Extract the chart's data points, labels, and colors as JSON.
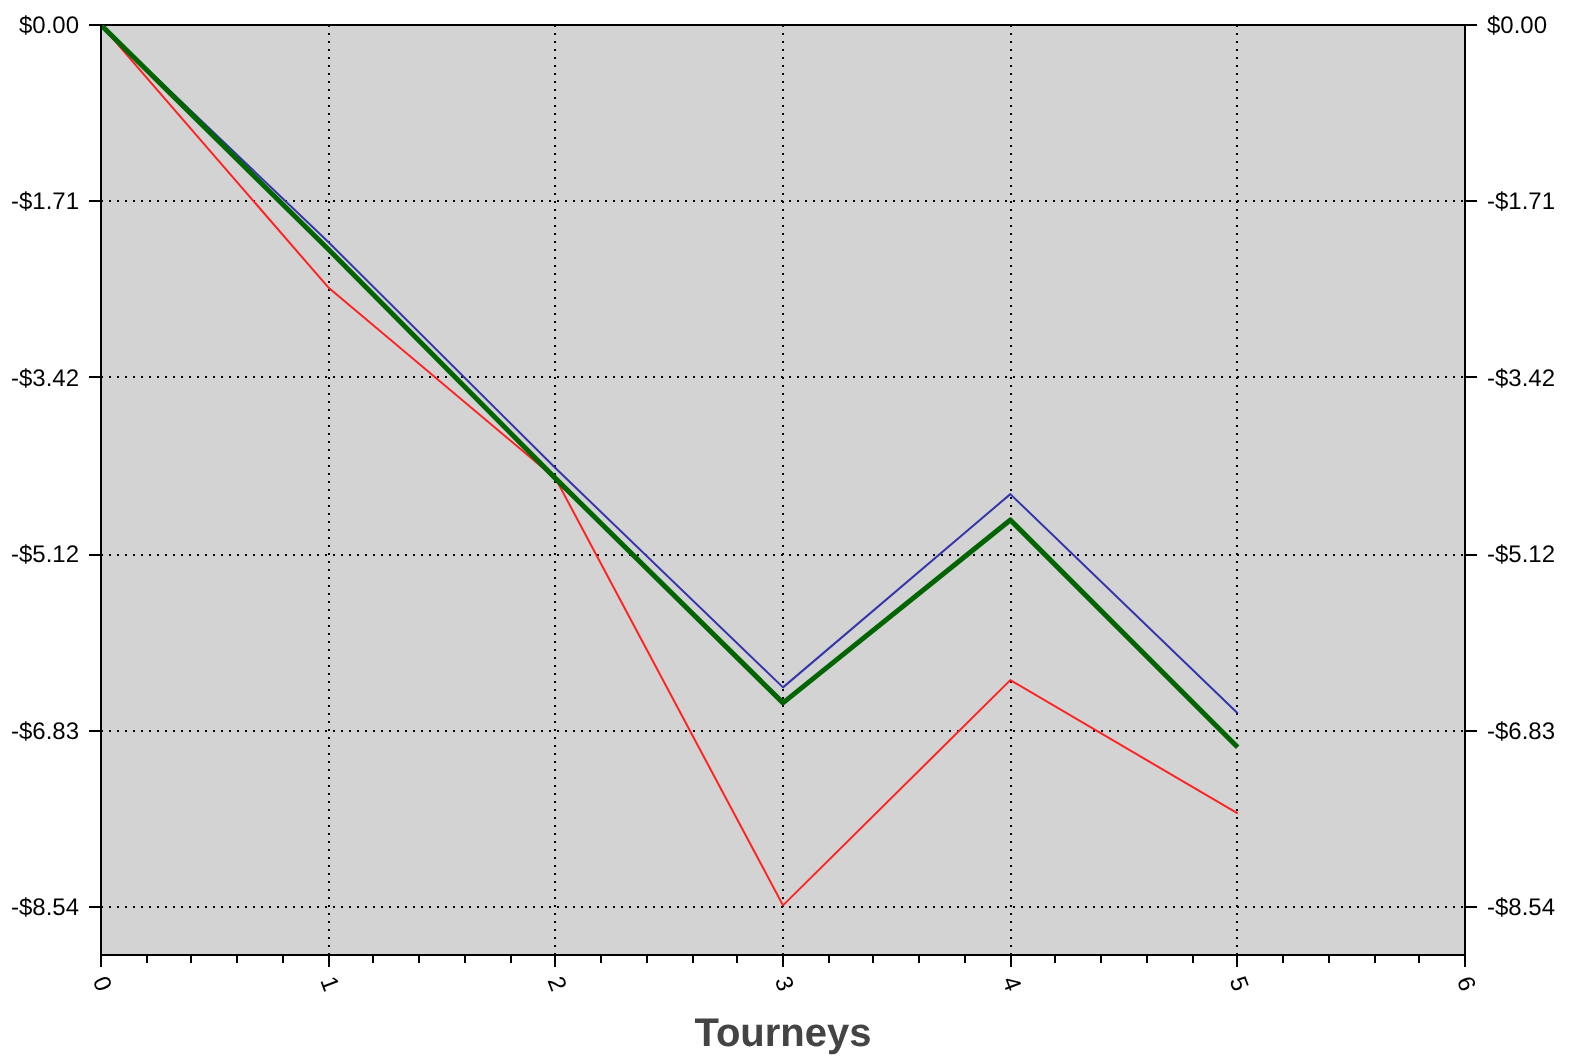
{
  "chart_data": {
    "type": "line",
    "xlabel": "Tourneys",
    "x": [
      0,
      1,
      2,
      3,
      4,
      5
    ],
    "series": [
      {
        "color": "#3333aa",
        "values": [
          0,
          -2.1,
          -4.29,
          -6.41,
          -4.54,
          -6.66
        ]
      },
      {
        "color": "#ff2020",
        "values": [
          0,
          -2.54,
          -4.39,
          -8.52,
          -6.34,
          -7.63
        ]
      },
      {
        "color": "#006400",
        "values": [
          0,
          -2.17,
          -4.39,
          -6.56,
          -4.79,
          -6.99
        ]
      }
    ],
    "xlim": [
      0,
      6
    ],
    "xticks": [
      0,
      1,
      2,
      3,
      4,
      5,
      6
    ],
    "ylim": [
      -9.0,
      0
    ],
    "yticks": [
      {
        "value": 0,
        "label": "$0.00"
      },
      {
        "value": -1.708,
        "label": "-$1.71"
      },
      {
        "value": -3.416,
        "label": "-$3.42"
      },
      {
        "value": -5.124,
        "label": "-$5.12"
      },
      {
        "value": -6.832,
        "label": "-$6.83"
      },
      {
        "value": -8.54,
        "label": "-$8.54"
      }
    ],
    "y2lim": [
      -9.0,
      0
    ],
    "y2ticks": [
      {
        "value": 0,
        "label": "$0.00"
      },
      {
        "value": -1.708,
        "label": "-$1.71"
      },
      {
        "value": -3.416,
        "label": "-$3.42"
      },
      {
        "value": -5.124,
        "label": "-$5.12"
      },
      {
        "value": -6.832,
        "label": "-$6.83"
      },
      {
        "value": -8.54,
        "label": "-$8.54"
      }
    ],
    "grid": true,
    "marker": "none",
    "line_style": "solid"
  }
}
